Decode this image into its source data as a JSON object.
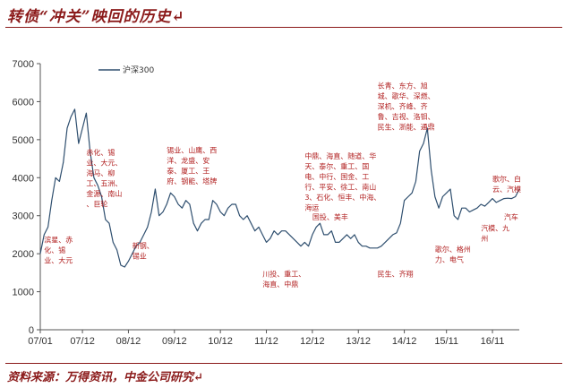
{
  "header": {
    "title": "转债“冲关”映回的历史↵"
  },
  "footer": {
    "source": "资料来源：万得资讯，中金公司研究↵"
  },
  "chart_data": {
    "type": "line",
    "title": "",
    "xlabel": "",
    "ylabel": "",
    "ylim": [
      0,
      7000
    ],
    "yticks": [
      0,
      1000,
      2000,
      3000,
      4000,
      5000,
      6000,
      7000
    ],
    "xlim": [
      "2007-01",
      "2017-06"
    ],
    "xticks": [
      "07/01",
      "07/12",
      "08/12",
      "09/12",
      "10/12",
      "11/12",
      "12/12",
      "13/12",
      "14/12",
      "15/11",
      "16/11"
    ],
    "xtick_dates": [
      "2007-01",
      "2007-12",
      "2008-12",
      "2009-12",
      "2010-12",
      "2011-12",
      "2012-12",
      "2013-12",
      "2014-12",
      "2015-11",
      "2016-11"
    ],
    "grid": false,
    "legend": "top-left",
    "series": [
      {
        "name": "沪深300",
        "color": "#2f4f6f",
        "points": [
          [
            "2007-01",
            2000
          ],
          [
            "2007-02",
            2500
          ],
          [
            "2007-03",
            2700
          ],
          [
            "2007-04",
            3400
          ],
          [
            "2007-05",
            4000
          ],
          [
            "2007-06",
            3900
          ],
          [
            "2007-07",
            4400
          ],
          [
            "2007-08",
            5300
          ],
          [
            "2007-09",
            5600
          ],
          [
            "2007-10",
            5800
          ],
          [
            "2007-11",
            4900
          ],
          [
            "2007-12",
            5300
          ],
          [
            "2008-01",
            5700
          ],
          [
            "2008-02",
            4700
          ],
          [
            "2008-03",
            4000
          ],
          [
            "2008-04",
            3800
          ],
          [
            "2008-05",
            3500
          ],
          [
            "2008-06",
            2900
          ],
          [
            "2008-07",
            2800
          ],
          [
            "2008-08",
            2300
          ],
          [
            "2008-09",
            2100
          ],
          [
            "2008-10",
            1700
          ],
          [
            "2008-11",
            1650
          ],
          [
            "2008-12",
            1800
          ],
          [
            "2009-01",
            2000
          ],
          [
            "2009-02",
            2200
          ],
          [
            "2009-03",
            2300
          ],
          [
            "2009-04",
            2500
          ],
          [
            "2009-05",
            2700
          ],
          [
            "2009-06",
            3100
          ],
          [
            "2009-07",
            3700
          ],
          [
            "2009-08",
            3000
          ],
          [
            "2009-09",
            3100
          ],
          [
            "2009-10",
            3300
          ],
          [
            "2009-11",
            3600
          ],
          [
            "2009-12",
            3500
          ],
          [
            "2010-01",
            3300
          ],
          [
            "2010-02",
            3200
          ],
          [
            "2010-03",
            3400
          ],
          [
            "2010-04",
            3300
          ],
          [
            "2010-05",
            2800
          ],
          [
            "2010-06",
            2600
          ],
          [
            "2010-07",
            2800
          ],
          [
            "2010-08",
            2900
          ],
          [
            "2010-09",
            2900
          ],
          [
            "2010-10",
            3400
          ],
          [
            "2010-11",
            3300
          ],
          [
            "2010-12",
            3100
          ],
          [
            "2011-01",
            3000
          ],
          [
            "2011-02",
            3200
          ],
          [
            "2011-03",
            3300
          ],
          [
            "2011-04",
            3300
          ],
          [
            "2011-05",
            3000
          ],
          [
            "2011-06",
            2900
          ],
          [
            "2011-07",
            3000
          ],
          [
            "2011-08",
            2800
          ],
          [
            "2011-09",
            2600
          ],
          [
            "2011-10",
            2700
          ],
          [
            "2011-11",
            2500
          ],
          [
            "2011-12",
            2300
          ],
          [
            "2012-01",
            2400
          ],
          [
            "2012-02",
            2600
          ],
          [
            "2012-03",
            2500
          ],
          [
            "2012-04",
            2600
          ],
          [
            "2012-05",
            2600
          ],
          [
            "2012-06",
            2500
          ],
          [
            "2012-07",
            2400
          ],
          [
            "2012-08",
            2300
          ],
          [
            "2012-09",
            2200
          ],
          [
            "2012-10",
            2300
          ],
          [
            "2012-11",
            2200
          ],
          [
            "2012-12",
            2500
          ],
          [
            "2013-01",
            2700
          ],
          [
            "2013-02",
            2800
          ],
          [
            "2013-03",
            2500
          ],
          [
            "2013-04",
            2500
          ],
          [
            "2013-05",
            2600
          ],
          [
            "2013-06",
            2300
          ],
          [
            "2013-07",
            2300
          ],
          [
            "2013-08",
            2400
          ],
          [
            "2013-09",
            2500
          ],
          [
            "2013-10",
            2400
          ],
          [
            "2013-11",
            2500
          ],
          [
            "2013-12",
            2300
          ],
          [
            "2014-01",
            2200
          ],
          [
            "2014-02",
            2200
          ],
          [
            "2014-03",
            2150
          ],
          [
            "2014-04",
            2150
          ],
          [
            "2014-05",
            2150
          ],
          [
            "2014-06",
            2200
          ],
          [
            "2014-07",
            2300
          ],
          [
            "2014-08",
            2400
          ],
          [
            "2014-09",
            2500
          ],
          [
            "2014-10",
            2550
          ],
          [
            "2014-11",
            2800
          ],
          [
            "2014-12",
            3400
          ],
          [
            "2015-01",
            3500
          ],
          [
            "2015-02",
            3600
          ],
          [
            "2015-03",
            3900
          ],
          [
            "2015-04",
            4700
          ],
          [
            "2015-05",
            4900
          ],
          [
            "2015-06",
            5300
          ],
          [
            "2015-07",
            4200
          ],
          [
            "2015-08",
            3500
          ],
          [
            "2015-09",
            3200
          ],
          [
            "2015-10",
            3500
          ],
          [
            "2015-11",
            3600
          ],
          [
            "2015-12",
            3700
          ],
          [
            "2016-01",
            3000
          ],
          [
            "2016-02",
            2900
          ],
          [
            "2016-03",
            3200
          ],
          [
            "2016-04",
            3200
          ],
          [
            "2016-05",
            3100
          ],
          [
            "2016-06",
            3150
          ],
          [
            "2016-07",
            3200
          ],
          [
            "2016-08",
            3300
          ],
          [
            "2016-09",
            3250
          ],
          [
            "2016-10",
            3350
          ],
          [
            "2016-11",
            3450
          ],
          [
            "2016-12",
            3350
          ],
          [
            "2017-01",
            3400
          ],
          [
            "2017-02",
            3450
          ],
          [
            "2017-03",
            3460
          ],
          [
            "2017-04",
            3450
          ],
          [
            "2017-05",
            3500
          ],
          [
            "2017-06",
            3700
          ]
        ]
      }
    ],
    "annotations": [
      {
        "at": [
          "2008-01",
          4600
        ],
        "lines": [
          "赤化、锡",
          "业、大元、",
          "海马、柳",
          "工、五洲、",
          "金源、南山",
          "、巨轮"
        ]
      },
      {
        "at": [
          "2007-02",
          2300
        ],
        "lines": [
          "滨星、赤",
          "化、锡",
          "业、大元"
        ]
      },
      {
        "at": [
          "2009-10",
          4650
        ],
        "lines": [
          "锡业、山鹰、西",
          "洋、龙盛、安",
          "泰、厦工、王",
          "府、钢能、塔牌"
        ]
      },
      {
        "at": [
          "2009-01",
          2150
        ],
        "lines": [
          "新钢、",
          "锡业"
        ]
      },
      {
        "at": [
          "2012-10",
          4500
        ],
        "lines": [
          "中鼎、海直、随道、华",
          "天、泰尔、重工、国",
          "电、中行、国金、工",
          "行、平安、徐工、南山",
          "3、石化、恒丰、中海、",
          "海运"
        ]
      },
      {
        "at": [
          "2012-12",
          2900
        ],
        "lines": [
          "国投、美丰"
        ]
      },
      {
        "at": [
          "2011-11",
          1400
        ],
        "lines": [
          "川投、重工、",
          "海直、中鼎"
        ]
      },
      {
        "at": [
          "2014-05",
          6350
        ],
        "lines": [
          "长青、东方、旭",
          "城、歌华、深燃、",
          "深机、齐峰、齐",
          "鲁、吉视、洛钼、",
          "民生、浙能、通鼎"
        ]
      },
      {
        "at": [
          "2014-05",
          1400
        ],
        "lines": [
          "民生、齐翔"
        ]
      },
      {
        "at": [
          "2015-08",
          2050
        ],
        "lines": [
          "歌尔、格州",
          "力、电气"
        ]
      },
      {
        "at": [
          "2016-11",
          3900
        ],
        "lines": [
          "歌尔、白",
          "云、汽模"
        ]
      },
      {
        "at": [
          "2016-08",
          2600
        ],
        "lines": [
          "汽模、九",
          "州"
        ]
      },
      {
        "at": [
          "2017-02",
          2900
        ],
        "lines": [
          "汽车"
        ]
      }
    ]
  }
}
